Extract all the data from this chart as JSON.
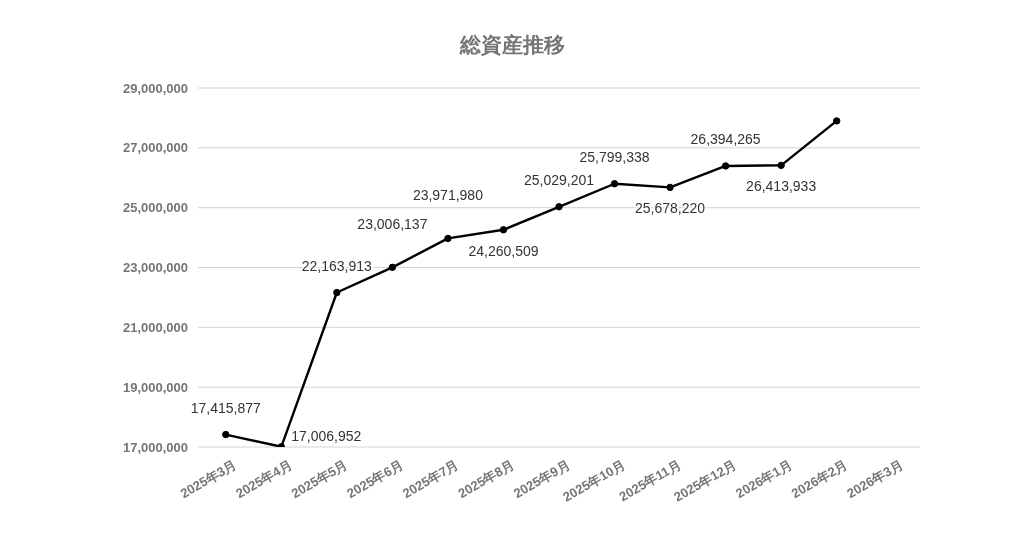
{
  "chart_data": {
    "type": "line",
    "title": "総資産推移",
    "categories": [
      "2025年3月",
      "2025年4月",
      "2025年5月",
      "2025年6月",
      "2025年7月",
      "2025年8月",
      "2025年9月",
      "2025年10月",
      "2025年11月",
      "2025年12月",
      "2026年1月",
      "2026年2月",
      "2026年3月"
    ],
    "series": [
      {
        "color": "#000000",
        "values": [
          17415877,
          17006952,
          22163913,
          23006137,
          23971980,
          24260509,
          25029201,
          25799338,
          25678220,
          26394265,
          26413933,
          27900000,
          null
        ],
        "value_labels": [
          "17,415,877",
          "17,006,952",
          "22,163,913",
          "23,006,137",
          "23,971,980",
          "24,260,509",
          "25,029,201",
          "25,799,338",
          "25,678,220",
          "26,394,265",
          "26,413,933",
          null,
          null
        ]
      }
    ],
    "ylim": [
      17000000,
      29000000
    ],
    "yticks": [
      {
        "value": 17000000,
        "label": "17,000,000"
      },
      {
        "value": 19000000,
        "label": "19,000,000"
      },
      {
        "value": 21000000,
        "label": "21,000,000"
      },
      {
        "value": 23000000,
        "label": "23,000,000"
      },
      {
        "value": 25000000,
        "label": "25,000,000"
      },
      {
        "value": 27000000,
        "label": "27,000,000"
      },
      {
        "value": 29000000,
        "label": "29,000,000"
      }
    ],
    "grid": "y",
    "marker": "circle",
    "line_style": "solid"
  }
}
